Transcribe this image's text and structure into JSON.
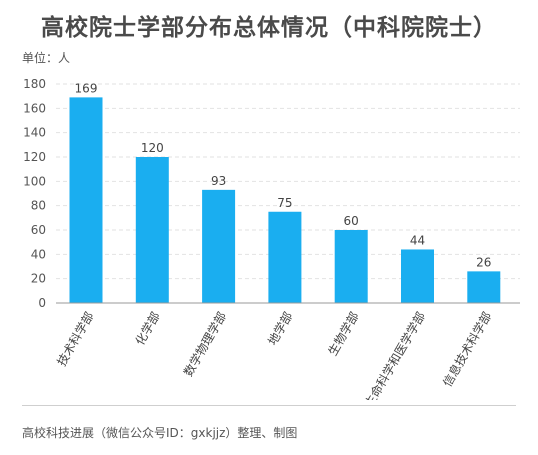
{
  "chart_data": {
    "type": "bar",
    "title": "高校院士学部分布总体情况（中科院院士）",
    "unit_label": "单位：人",
    "categories": [
      "技术科学部",
      "化学部",
      "数学物理学部",
      "地学部",
      "生物学部",
      "生命科学和医学学部",
      "信息技术科学部"
    ],
    "values": [
      169,
      120,
      93,
      75,
      60,
      44,
      26
    ],
    "ylim": [
      0,
      180
    ],
    "yticks": [
      0,
      20,
      40,
      60,
      80,
      100,
      120,
      140,
      160,
      180
    ],
    "grid": true,
    "bar_color": "#1aaef0",
    "source": "高校科技进展（微信公众号ID：gxkjjz）整理、制图"
  }
}
